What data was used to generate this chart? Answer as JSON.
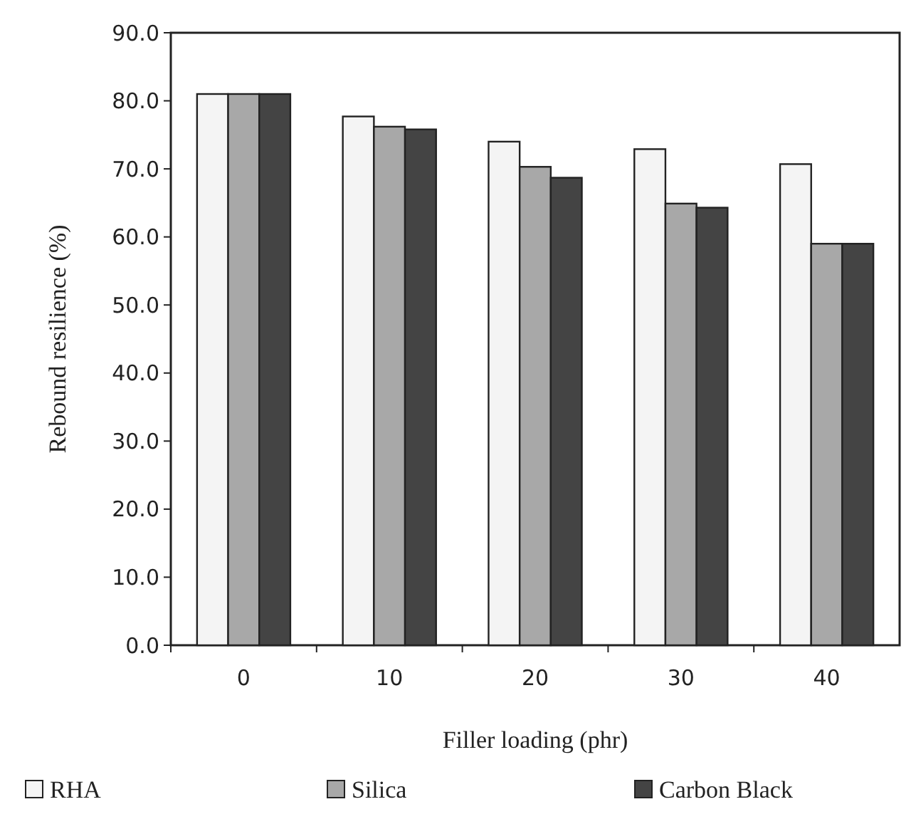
{
  "chart_data": {
    "type": "bar",
    "xlabel": "Filler loading (phr)",
    "ylabel": "Rebound resilience (%)",
    "categories": [
      "0",
      "10",
      "20",
      "30",
      "40"
    ],
    "series": [
      {
        "name": "RHA",
        "color": "#f4f4f4",
        "values": [
          81.0,
          77.7,
          74.0,
          72.9,
          70.7
        ]
      },
      {
        "name": "Silica",
        "color": "#a8a8a8",
        "values": [
          81.0,
          76.2,
          70.3,
          64.9,
          59.0
        ]
      },
      {
        "name": "Carbon Black",
        "color": "#444444",
        "values": [
          81.0,
          75.8,
          68.7,
          64.3,
          59.0
        ]
      }
    ],
    "ylim": [
      0,
      90
    ],
    "yticks": [
      {
        "value": 0,
        "label": "0.0"
      },
      {
        "value": 10,
        "label": "10.0"
      },
      {
        "value": 20,
        "label": "20.0"
      },
      {
        "value": 30,
        "label": "30.0"
      },
      {
        "value": 40,
        "label": "40.0"
      },
      {
        "value": 50,
        "label": "50.0"
      },
      {
        "value": 60,
        "label": "60.0"
      },
      {
        "value": 70,
        "label": "70.0"
      },
      {
        "value": 80,
        "label": "80.0"
      },
      {
        "value": 90,
        "label": "90.0"
      }
    ],
    "grid": false,
    "legend": "bottom"
  }
}
